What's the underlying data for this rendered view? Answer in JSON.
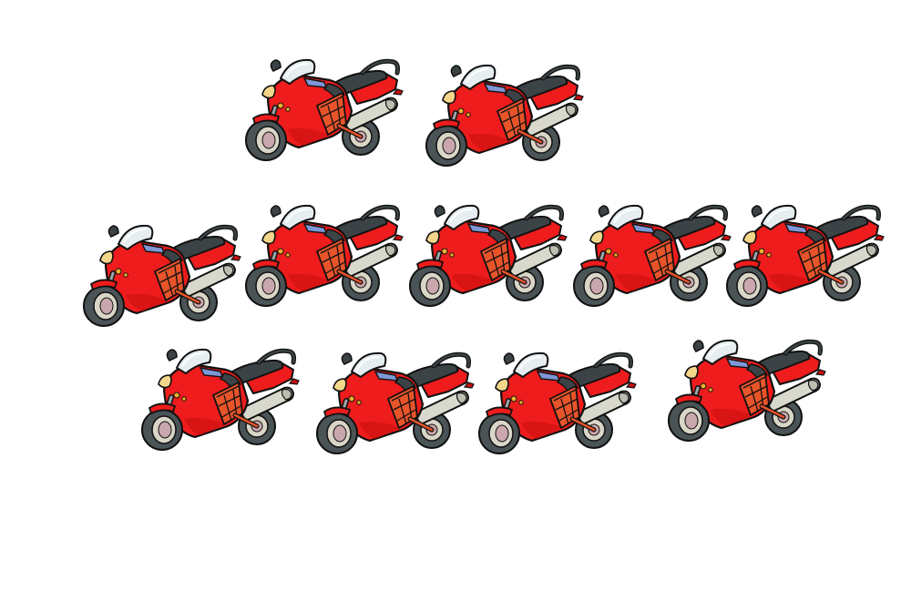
{
  "scene": {
    "background": "#ffffff",
    "object_icon": "motorcycle-icon",
    "motorcycle_count": 11,
    "row_counts": [
      2,
      5,
      4
    ],
    "colors": {
      "body": "#ee1c1c",
      "body_shade": "#c80f0f",
      "frame": "#e8542a",
      "outline": "#111111",
      "tire": "#4a5356",
      "rim": "#d9d6c8",
      "hub": "#c9a7ad",
      "windshield": "#e6eef1",
      "seat": "#3c4346",
      "exhaust": "#d8d8cc",
      "headlight": "#f4d68a"
    }
  }
}
